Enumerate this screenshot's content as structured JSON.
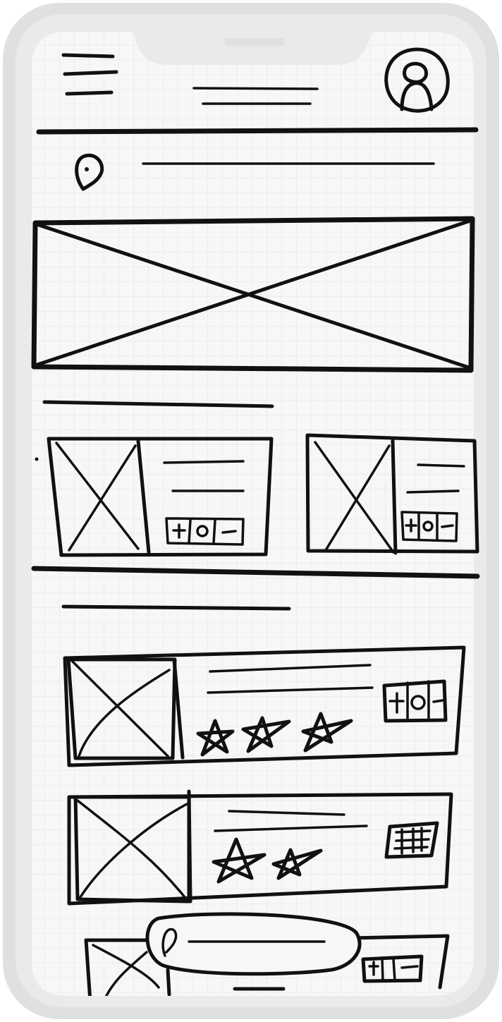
{
  "theme": {
    "frame_color": "#dfe1e1",
    "screen_color": "#f7f7f7",
    "grid_color": "#e3e3e3",
    "ink_color": "#111111"
  },
  "header": {
    "menu_icon": "hamburger-menu-icon",
    "title_placeholder": "title-lines",
    "profile_icon": "user-avatar-icon"
  },
  "location_bar": {
    "icon": "map-pin-icon"
  },
  "hero": {
    "kind": "image-placeholder"
  },
  "featured_section": {
    "cards": [
      {
        "name": "featured-card-1",
        "stepper_icon": "plus-quantity-minus-stepper"
      },
      {
        "name": "featured-card-2",
        "stepper_icon": "plus-quantity-minus-stepper"
      }
    ]
  },
  "list_section": {
    "items": [
      {
        "name": "product-item-1",
        "rating_stars": 3,
        "stepper_icon": "plus-quantity-minus-stepper"
      },
      {
        "name": "product-item-2",
        "rating_stars": 2,
        "stepper_icon": "plus-quantity-minus-stepper"
      },
      {
        "name": "product-item-3",
        "rating_stars": 0,
        "stepper_icon": "plus-quantity-minus-stepper"
      }
    ]
  },
  "bottom_popup": {
    "icon": "map-pin-icon"
  }
}
